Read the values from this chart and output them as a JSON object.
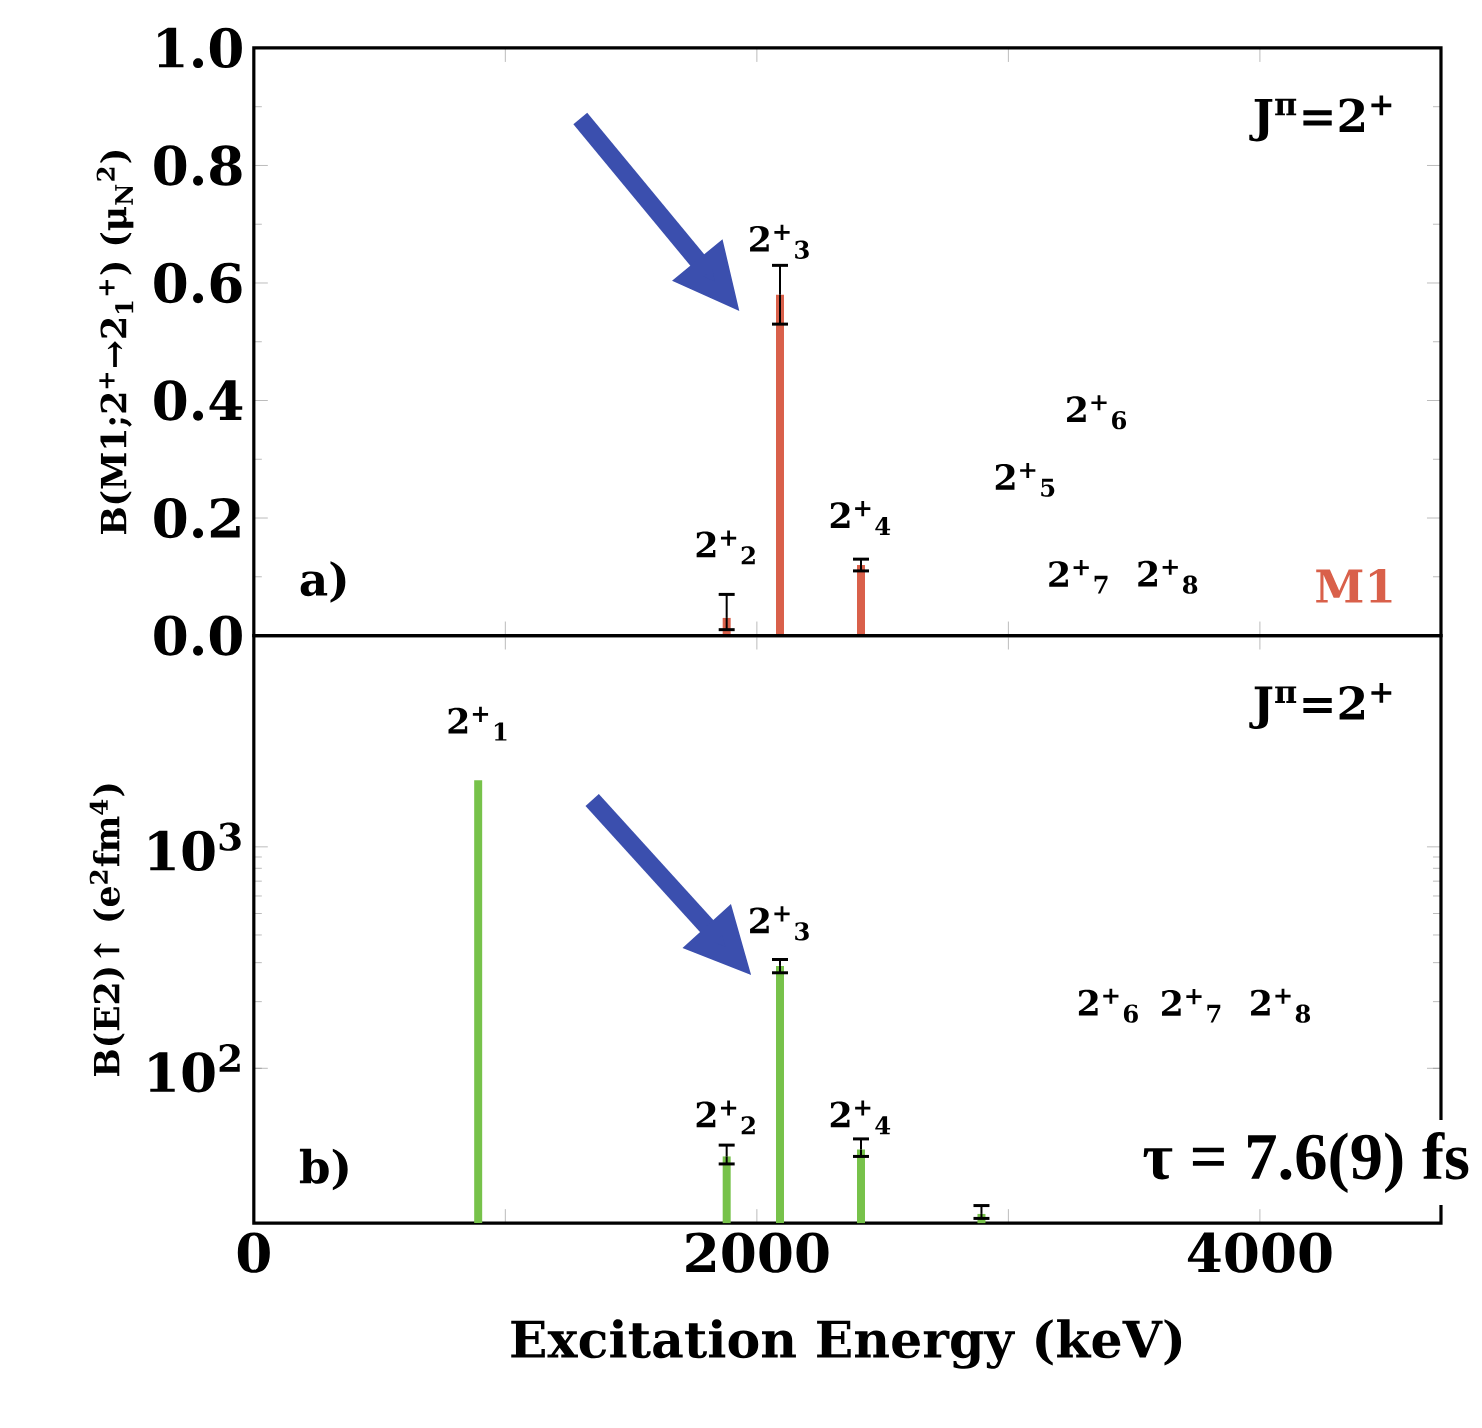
{
  "chart_data": [
    {
      "type": "bar",
      "ylabel": "B(M1;2$^{+}$→2$_{1}$$^{+}$) (μ$_{N}$$^{2}$)",
      "x": [
        1880,
        2092,
        2414
      ],
      "values": [
        0.03,
        0.58,
        0.12
      ],
      "errors": [
        [
          0.01,
          0.07
        ],
        [
          0.53,
          0.63
        ],
        [
          0.11,
          0.13
        ]
      ],
      "color": "#d9604a",
      "xlim": [
        0,
        4720
      ],
      "xticks": [
        {
          "value": 0,
          "label": null
        },
        {
          "value": 1000,
          "label": null
        },
        {
          "value": 2000,
          "label": null
        },
        {
          "value": 3000,
          "label": null
        },
        {
          "value": 4000,
          "label": null
        }
      ],
      "ylim": [
        0,
        1.0
      ],
      "yticks": [
        {
          "value": 0,
          "label": "0.0"
        },
        0.2,
        0.4,
        0.6,
        0.8,
        {
          "value": 1.0,
          "label": "1.0"
        }
      ],
      "tick_labels": "y",
      "annotations": [
        "a)",
        "J$^{π}$=2$^{+}$",
        "M1",
        "2$^{+}$$_{2}$",
        "2$^{+}$$_{3}$",
        "2$^{+}$$_{4}$",
        "2$^{+}$$_{5}$",
        "2$^{+}$$_{6}$",
        "2$^{+}$$_{7}$",
        "2$^{+}$$_{8}$"
      ]
    },
    {
      "type": "bar",
      "xlabel": "Excitation Energy (keV)",
      "ylabel": "B(E2)↑ (e$^{2}$fm$^{4}$)",
      "x": [
        892,
        1880,
        2092,
        2414,
        2893
      ],
      "values": [
        2000,
        40,
        290,
        43,
        22
      ],
      "errors": [
        null,
        [
          37,
          45
        ],
        [
          270,
          310
        ],
        [
          40,
          48
        ],
        [
          21,
          24
        ]
      ],
      "color": "#77c24a",
      "log": "y",
      "xlim": [
        0,
        4720
      ],
      "xticks": [
        0,
        {
          "value": 1000,
          "label": null
        },
        2000,
        {
          "value": 3000,
          "label": null
        },
        4000
      ],
      "ylim": [
        20,
        9000
      ],
      "yticks": [
        {
          "value": 100,
          "label": "10$^{2}$"
        },
        {
          "value": 1000,
          "label": "10$^{3}$"
        }
      ],
      "annotations": [
        "b)",
        "J$^{π}$=2$^{+}$",
        "τ  = 7.6(9) fs",
        "2$^{+}$$_{1}$",
        "2$^{+}$$_{2}$",
        "2$^{+}$$_{3}$",
        "2$^{+}$$_{4}$",
        "2$^{+}$$_{6}$",
        "2$^{+}$$_{7}$",
        "2$^{+}$$_{8}$"
      ]
    }
  ]
}
